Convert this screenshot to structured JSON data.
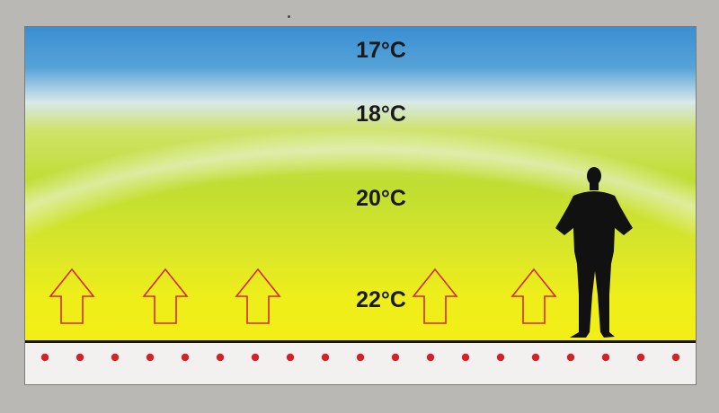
{
  "temperatures": {
    "t17": "17°C",
    "t18": "18°C",
    "t20": "20°C",
    "t22": "22°C"
  },
  "colors": {
    "ceiling_blue": "#3f93d4",
    "band_white": "#e6eef0",
    "mid_green": "#c7e23a",
    "floor_yellow": "#f1ef16",
    "arrow_red": "#d9262b",
    "heating_dot_red": "#d42229",
    "silhouette": "#111111"
  },
  "icons": {
    "arrow": "warm-air-up-arrow-icon",
    "person": "standing-person-silhouette-icon",
    "heating": "underfloor-heating-dot-icon"
  }
}
